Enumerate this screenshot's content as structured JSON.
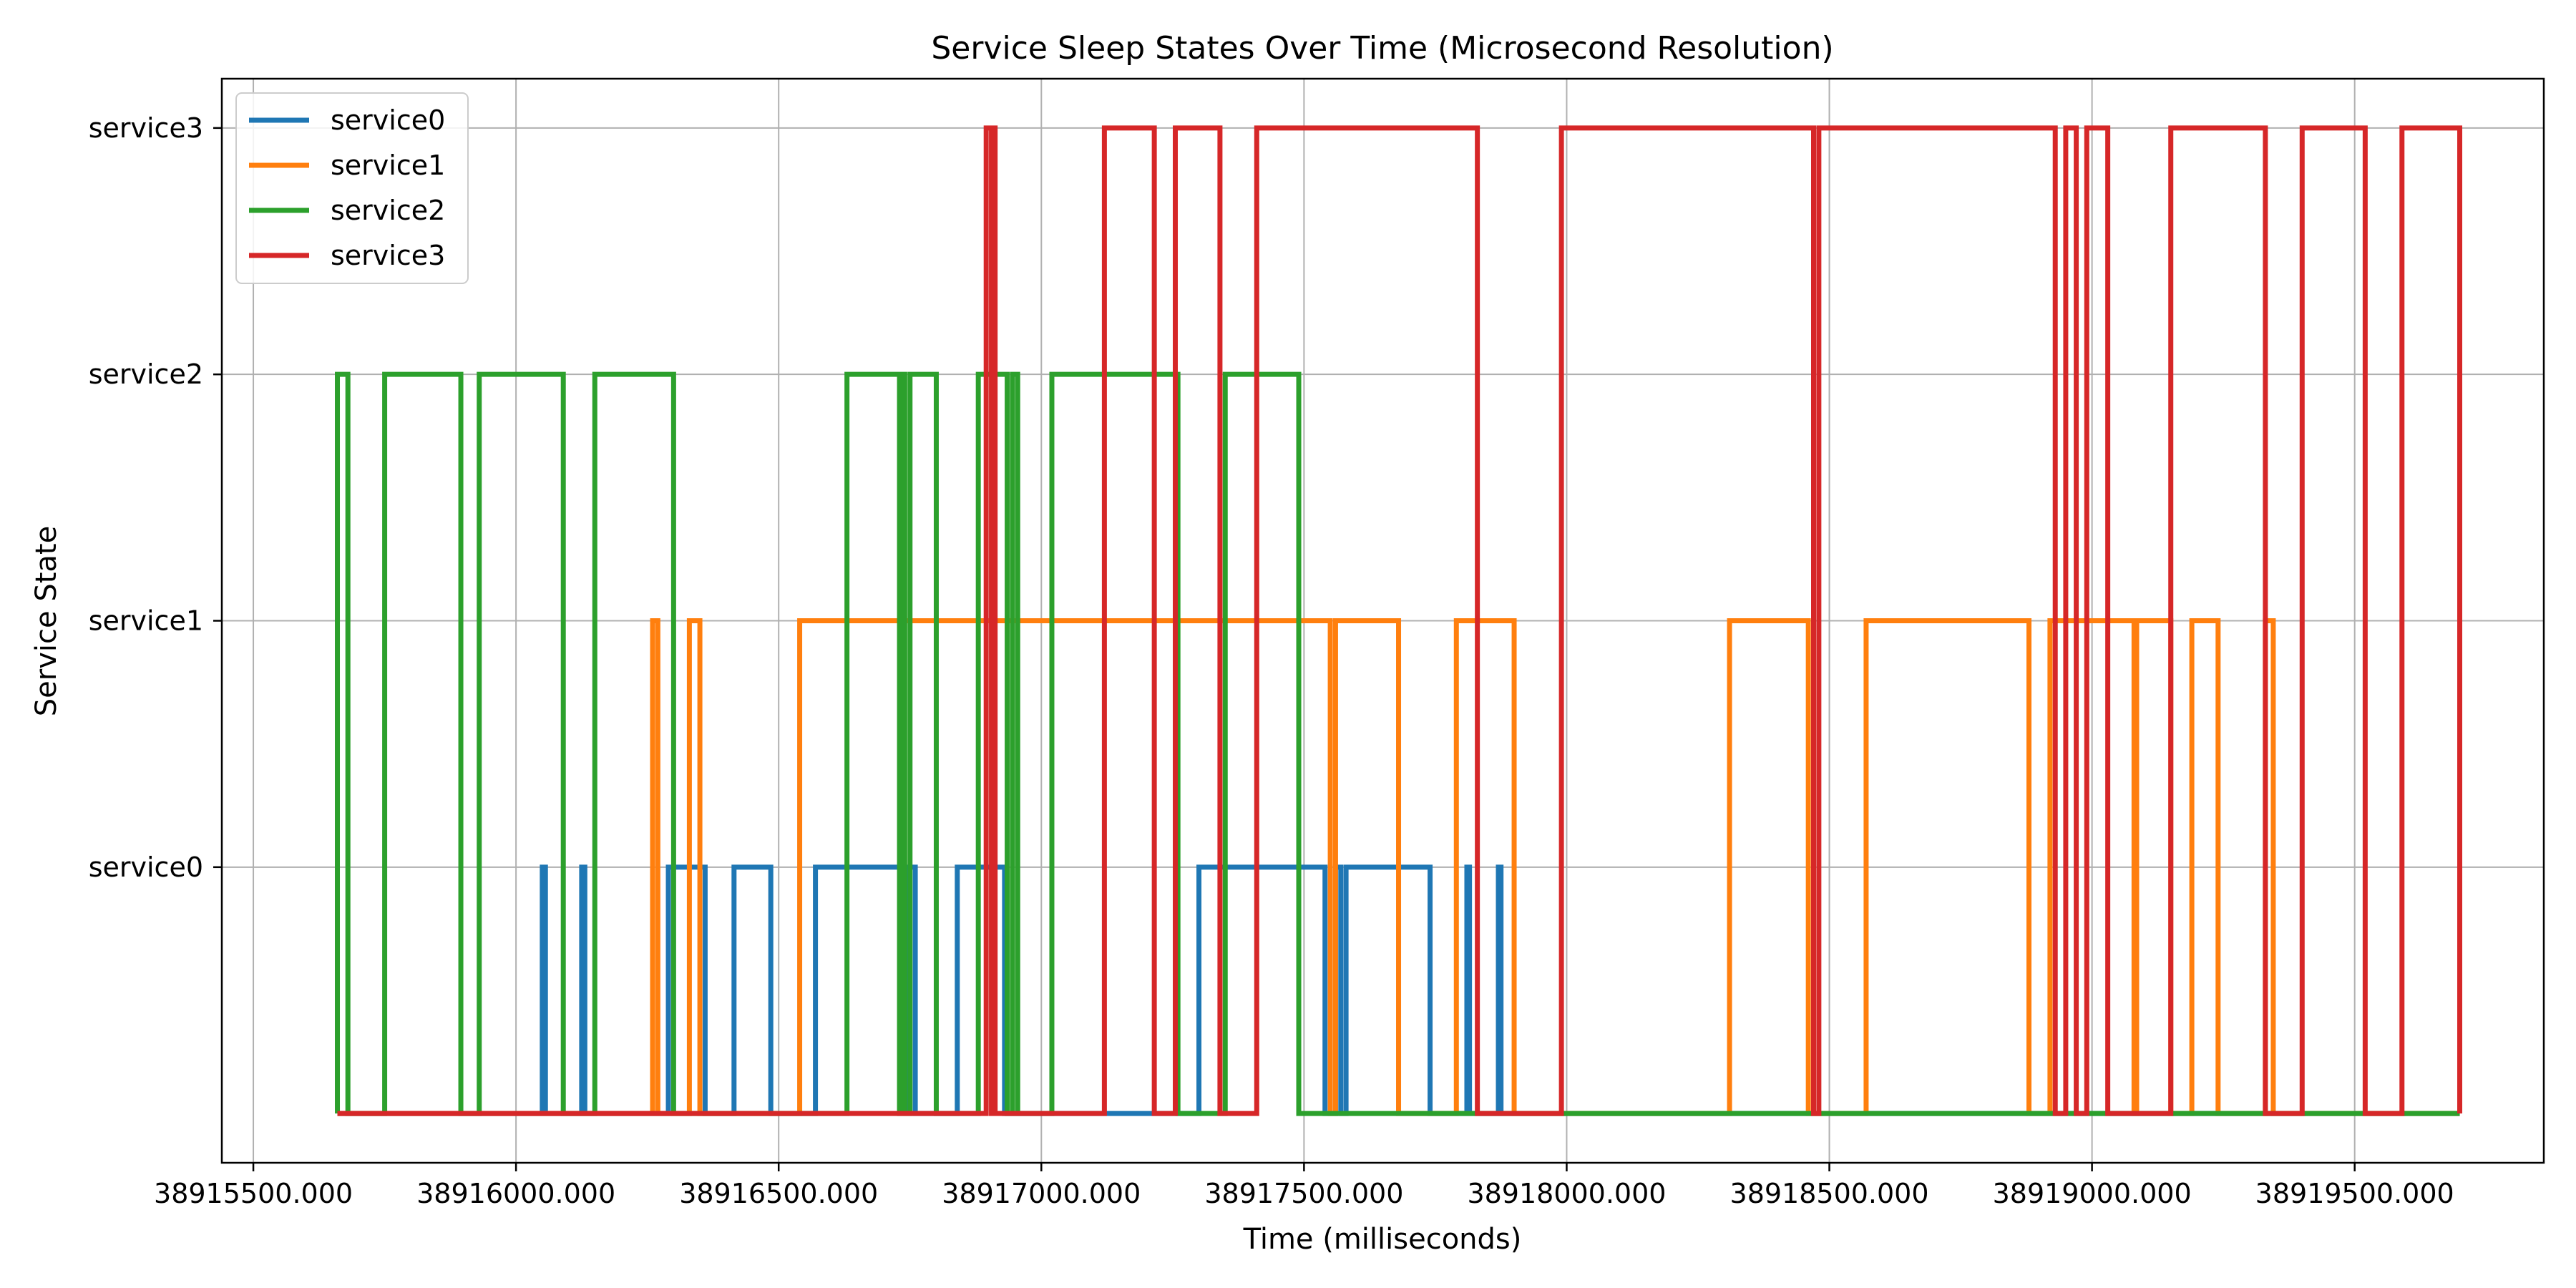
{
  "chart_data": {
    "type": "line",
    "step": "post",
    "title": "Service Sleep States Over Time (Microsecond Resolution)",
    "xlabel": "Time (milliseconds)",
    "ylabel": "Service State",
    "xlim": [
      38915440,
      38919860
    ],
    "ylim": [
      -1.2,
      3.2
    ],
    "xticks": [
      38915500,
      38916000,
      38916500,
      38917000,
      38917500,
      38918000,
      38918500,
      38919000,
      38919500
    ],
    "xtick_labels": [
      "38915500.000",
      "38916000.000",
      "38916500.000",
      "38917000.000",
      "38917500.000",
      "38918000.000",
      "38918500.000",
      "38919000.000",
      "38919500.000"
    ],
    "yticks": [
      0,
      1,
      2,
      3
    ],
    "ytick_labels": [
      "service0",
      "service1",
      "service2",
      "service3"
    ],
    "grid": true,
    "legend_position": "top-left",
    "colors": {
      "service0": "#1f77b4",
      "service1": "#ff7f0e",
      "service2": "#2ca02c",
      "service3": "#d62728"
    },
    "series": [
      {
        "name": "service0",
        "color": "#1f77b4",
        "base": -1,
        "level": 0,
        "intervals": [
          [
            38916050,
            38916056
          ],
          [
            38916125,
            38916131
          ],
          [
            38916290,
            38916360
          ],
          [
            38916415,
            38916485
          ],
          [
            38916570,
            38916745
          ],
          [
            38916745,
            38916760
          ],
          [
            38916840,
            38916930
          ],
          [
            38917300,
            38917540
          ],
          [
            38917560,
            38917570
          ],
          [
            38917580,
            38917740
          ],
          [
            38917810,
            38917815
          ],
          [
            38917870,
            38917875
          ]
        ]
      },
      {
        "name": "service1",
        "color": "#ff7f0e",
        "base": -1,
        "level": 1,
        "intervals": [
          [
            38916260,
            38916270
          ],
          [
            38916330,
            38916350
          ],
          [
            38916540,
            38917550
          ],
          [
            38917560,
            38917680
          ],
          [
            38917790,
            38917900
          ],
          [
            38918310,
            38918460
          ],
          [
            38918570,
            38918880
          ],
          [
            38918920,
            38919080
          ],
          [
            38919085,
            38919150
          ],
          [
            38919190,
            38919240
          ],
          [
            38919330,
            38919345
          ]
        ]
      },
      {
        "name": "service2",
        "color": "#2ca02c",
        "base": -1,
        "level": 2,
        "intervals": [
          [
            38915660,
            38915680
          ],
          [
            38915750,
            38915895
          ],
          [
            38915930,
            38916090
          ],
          [
            38916150,
            38916300
          ],
          [
            38916630,
            38916730
          ],
          [
            38916734,
            38916740
          ],
          [
            38916750,
            38916800
          ],
          [
            38916880,
            38916935
          ],
          [
            38916945,
            38916955
          ],
          [
            38917020,
            38917260
          ],
          [
            38917350,
            38917490
          ]
        ]
      },
      {
        "name": "service3",
        "color": "#d62728",
        "base": -1,
        "level": 3,
        "intervals": [
          [
            38916895,
            38916905
          ],
          [
            38916907,
            38916912
          ],
          [
            38917120,
            38917215
          ],
          [
            38917255,
            38917340
          ],
          [
            38917410,
            38917830
          ],
          [
            38917990,
            38918470
          ],
          [
            38918480,
            38918930
          ],
          [
            38918950,
            38918970
          ],
          [
            38918990,
            38919030
          ],
          [
            38919150,
            38919330
          ],
          [
            38919400,
            38919520
          ],
          [
            38919590,
            38919700
          ]
        ]
      }
    ]
  }
}
